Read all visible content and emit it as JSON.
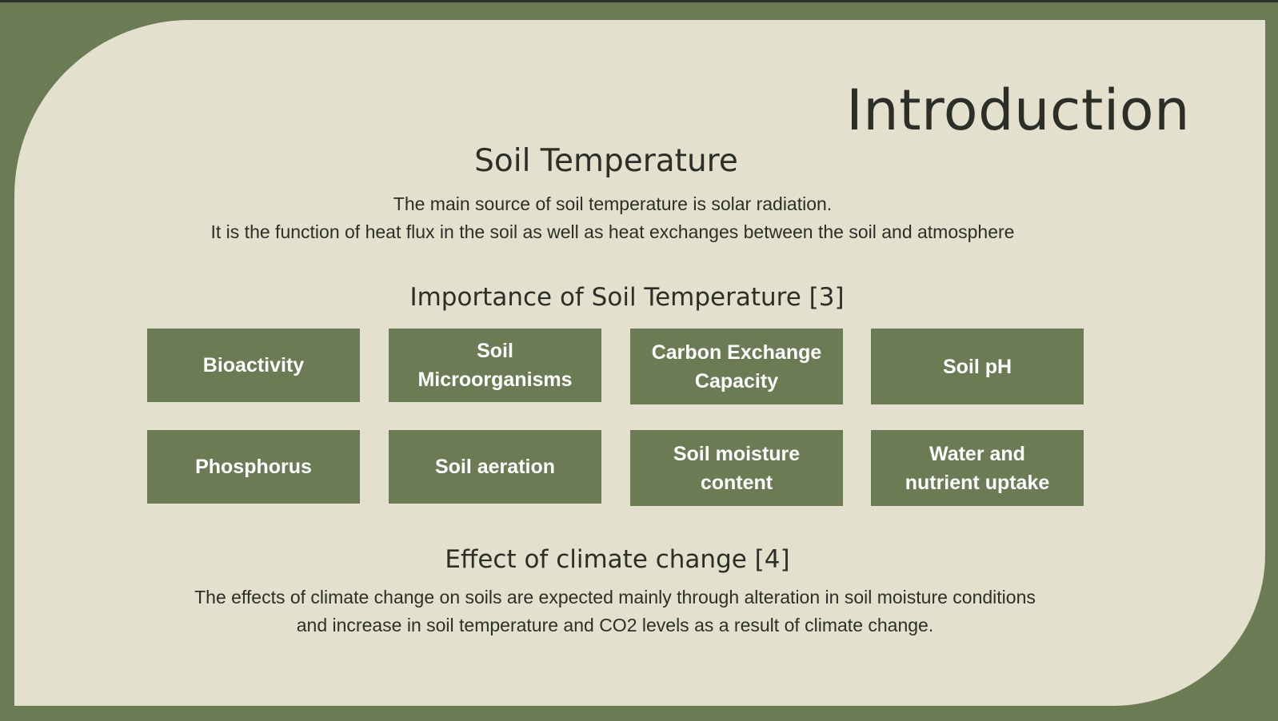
{
  "slide": {
    "title": "Introduction",
    "soil_temperature": {
      "heading": "Soil Temperature",
      "lines": [
        "The main source of soil temperature is solar radiation.",
        "It is the function of heat flux in the soil as well as heat exchanges between the soil and atmosphere"
      ]
    },
    "importance": {
      "heading": "Importance of Soil Temperature [3]",
      "items": [
        "Bioactivity",
        "Soil Microorganisms",
        "Carbon Exchange Capacity",
        "Soil pH",
        "Phosphorus",
        "Soil aeration",
        "Soil moisture content",
        "Water and nutrient uptake"
      ]
    },
    "climate": {
      "heading": "Effect of climate change [4]",
      "lines": [
        "The effects of climate change on soils are expected mainly through alteration in soil moisture conditions",
        "and increase in soil temperature and CO2 levels as a result of climate change."
      ]
    },
    "colors": {
      "frame_green": "#6b7c55",
      "panel_beige": "#e3e0cd",
      "text_dark": "#2b2f28"
    }
  }
}
